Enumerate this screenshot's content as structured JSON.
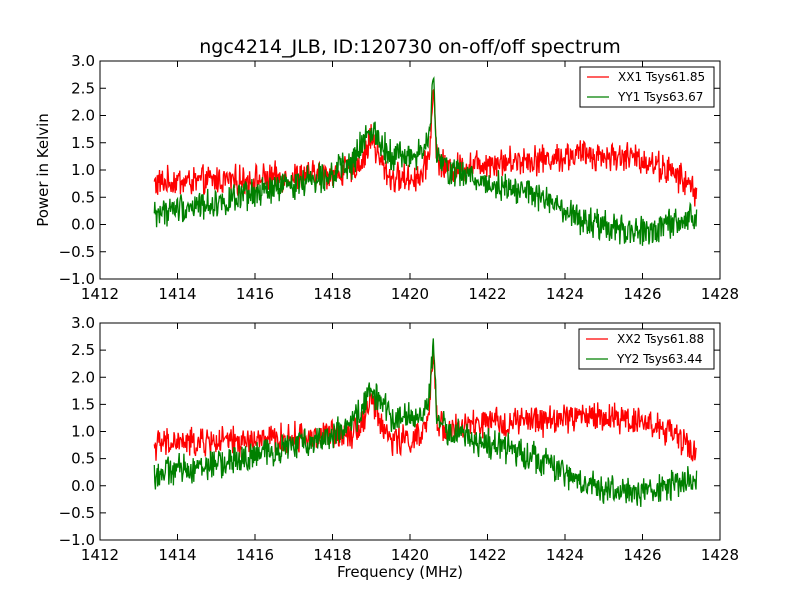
{
  "chart_data": [
    {
      "type": "line",
      "title": "ngc4214_JLB, ID:120730 on-off/off spectrum",
      "xlabel": "",
      "ylabel": "Power in Kelvin",
      "xlim": [
        1412,
        1428
      ],
      "ylim": [
        -1.0,
        3.0
      ],
      "xticks": [
        "1412",
        "1414",
        "1416",
        "1418",
        "1420",
        "1422",
        "1424",
        "1426",
        "1428"
      ],
      "yticks": [
        "3.0",
        "2.5",
        "2.0",
        "1.5",
        "1.0",
        "0.5",
        "0.0",
        "−0.5",
        "−1.0"
      ],
      "grid": false,
      "legend_position": "top-right",
      "x": [
        1413.4,
        1414.0,
        1414.5,
        1415.0,
        1415.5,
        1416.0,
        1416.5,
        1417.0,
        1417.5,
        1418.0,
        1418.5,
        1418.8,
        1419.0,
        1419.2,
        1419.5,
        1420.0,
        1420.3,
        1420.5,
        1420.6,
        1420.7,
        1421.0,
        1421.5,
        1422.0,
        1422.5,
        1423.0,
        1423.5,
        1424.0,
        1424.5,
        1425.0,
        1425.5,
        1426.0,
        1426.5,
        1427.0,
        1427.4
      ],
      "series": [
        {
          "name": "XX1 Tsys61.85",
          "color": "#ff0000",
          "values": [
            0.75,
            0.8,
            0.78,
            0.82,
            0.8,
            0.82,
            0.85,
            0.88,
            0.9,
            0.95,
            1.0,
            1.2,
            1.65,
            1.2,
            0.85,
            0.85,
            0.9,
            1.3,
            2.5,
            1.2,
            1.0,
            1.1,
            1.15,
            1.15,
            1.2,
            1.2,
            1.25,
            1.3,
            1.25,
            1.25,
            1.2,
            1.05,
            0.85,
            0.6
          ]
        },
        {
          "name": "YY1 Tsys63.67",
          "color": "#008000",
          "values": [
            0.2,
            0.3,
            0.35,
            0.4,
            0.45,
            0.55,
            0.65,
            0.75,
            0.85,
            0.95,
            1.1,
            1.5,
            1.8,
            1.55,
            1.3,
            1.25,
            1.3,
            1.6,
            2.7,
            1.2,
            1.0,
            0.9,
            0.75,
            0.7,
            0.6,
            0.45,
            0.2,
            0.05,
            -0.05,
            -0.1,
            -0.15,
            -0.05,
            0.05,
            0.15
          ]
        }
      ]
    },
    {
      "type": "line",
      "title": "",
      "xlabel": "Frequency (MHz)",
      "ylabel": "",
      "xlim": [
        1412,
        1428
      ],
      "ylim": [
        -1.0,
        3.0
      ],
      "xticks": [
        "1412",
        "1414",
        "1416",
        "1418",
        "1420",
        "1422",
        "1424",
        "1426",
        "1428"
      ],
      "yticks": [
        "3.0",
        "2.5",
        "2.0",
        "1.5",
        "1.0",
        "0.5",
        "0.0",
        "−0.5",
        "−1.0"
      ],
      "grid": false,
      "legend_position": "top-right",
      "x": [
        1413.4,
        1414.0,
        1414.5,
        1415.0,
        1415.5,
        1416.0,
        1416.5,
        1417.0,
        1417.5,
        1418.0,
        1418.5,
        1418.8,
        1419.0,
        1419.2,
        1419.5,
        1420.0,
        1420.3,
        1420.5,
        1420.6,
        1420.7,
        1421.0,
        1421.5,
        1422.0,
        1422.5,
        1423.0,
        1423.5,
        1424.0,
        1424.5,
        1425.0,
        1425.5,
        1426.0,
        1426.5,
        1427.0,
        1427.4
      ],
      "series": [
        {
          "name": "XX2 Tsys61.88",
          "color": "#ff0000",
          "values": [
            0.75,
            0.8,
            0.78,
            0.82,
            0.8,
            0.82,
            0.85,
            0.88,
            0.9,
            0.95,
            1.0,
            1.2,
            1.65,
            1.2,
            0.85,
            0.85,
            0.9,
            1.3,
            2.5,
            1.2,
            1.0,
            1.1,
            1.15,
            1.15,
            1.2,
            1.2,
            1.25,
            1.3,
            1.25,
            1.25,
            1.2,
            1.05,
            0.85,
            0.6
          ]
        },
        {
          "name": "YY2 Tsys63.44",
          "color": "#008000",
          "values": [
            0.2,
            0.3,
            0.35,
            0.4,
            0.45,
            0.55,
            0.65,
            0.75,
            0.85,
            0.95,
            1.1,
            1.5,
            1.8,
            1.55,
            1.3,
            1.25,
            1.3,
            1.6,
            2.7,
            1.2,
            1.0,
            0.9,
            0.75,
            0.7,
            0.6,
            0.45,
            0.2,
            0.05,
            -0.05,
            -0.1,
            -0.15,
            -0.05,
            0.05,
            0.15
          ]
        }
      ]
    }
  ]
}
